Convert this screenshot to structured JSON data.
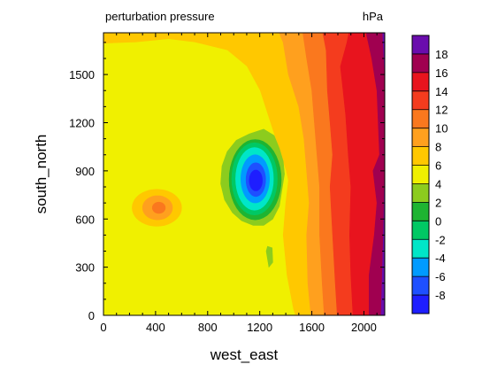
{
  "chart_data": {
    "type": "heatmap",
    "title": "perturbation pressure",
    "units": "hPa",
    "xlabel": "west_east",
    "ylabel": "south_north",
    "xlim": [
      0,
      2160
    ],
    "ylim": [
      0,
      1760
    ],
    "x_ticks": [
      0,
      400,
      800,
      1200,
      1600,
      2000
    ],
    "x_tick_labels": [
      "0",
      "400",
      "800",
      "1200",
      "1600",
      "2000"
    ],
    "y_ticks": [
      0,
      300,
      600,
      900,
      1200,
      1500
    ],
    "y_tick_labels": [
      "0",
      "300",
      "600",
      "900",
      "1200",
      "1500"
    ],
    "colorbar": {
      "labels": [
        "18",
        "16",
        "14",
        "12",
        "10",
        "8",
        "6",
        "4",
        "2",
        "0",
        "-2",
        "-4",
        "-6",
        "-8"
      ],
      "levels_top_to_bottom": [
        18,
        16,
        14,
        12,
        10,
        8,
        6,
        4,
        2,
        0,
        -2,
        -4,
        -6,
        -8
      ],
      "colors_top_to_bottom": [
        "#6a0dad",
        "#a00050",
        "#e8141e",
        "#f43c1e",
        "#fa781e",
        "#ffa01e",
        "#ffc800",
        "#f0f000",
        "#8ccc1e",
        "#1eb432",
        "#00c864",
        "#00e6c8",
        "#009bff",
        "#1e50ff",
        "#1e1eff"
      ]
    },
    "features": {
      "low_center": {
        "x": 1170,
        "y": 840,
        "min_value": -8
      },
      "secondary_low": {
        "x": 1200,
        "y": 520,
        "value": 4
      },
      "local_high": {
        "x": 420,
        "y": 670,
        "value": 10
      },
      "western_field": 6,
      "eastern_max": 18
    }
  }
}
